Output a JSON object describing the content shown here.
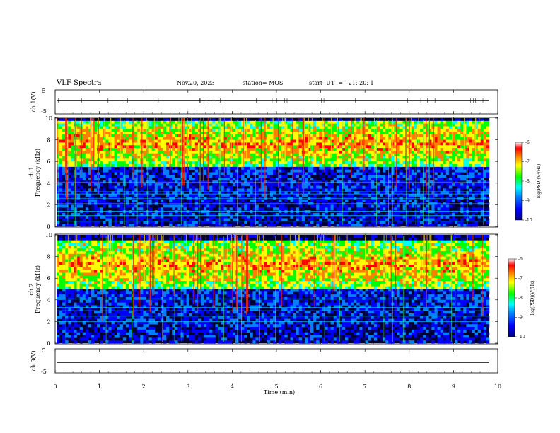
{
  "header": {
    "title": "VLF Spectra",
    "date": "Nov.20, 2023",
    "station": "station= MOS",
    "start": "start  UT  =   21: 20: 1"
  },
  "chart_data": [
    {
      "type": "line",
      "panel": "ch1-voltage",
      "ylabel": "ch.1(V)",
      "ylim": [
        -5,
        5
      ],
      "yticks": [
        "5",
        "-5"
      ],
      "series": [
        {
          "x": [
            0,
            9.85
          ],
          "values": [
            0,
            0
          ]
        }
      ]
    },
    {
      "type": "heatmap",
      "panel": "ch1-spectrogram",
      "ylabel": "ch.1\nFrequency (kHz)",
      "ylim": [
        0,
        10
      ],
      "yticks": [
        "0",
        "2",
        "4",
        "6",
        "8",
        "10"
      ],
      "xlim": [
        0,
        9.85
      ],
      "colorbar": {
        "label": "log(PSD)(V²/Hz)",
        "ticks": [
          "-6",
          "-7",
          "-8",
          "-9",
          "-10"
        ],
        "range": [
          -10,
          -6
        ]
      },
      "intense_band_khz": [
        5.5,
        9.8
      ],
      "emission_lines_khz": [
        0.5,
        1.0,
        1.4,
        2.1,
        2.6,
        3.0,
        3.2,
        4.1
      ]
    },
    {
      "type": "heatmap",
      "panel": "ch2-spectrogram",
      "ylabel": "ch.2\nFrequency (kHz)",
      "ylim": [
        0,
        10
      ],
      "yticks": [
        "0",
        "2",
        "4",
        "6",
        "8",
        "10"
      ],
      "xlim": [
        0,
        9.85
      ],
      "colorbar": {
        "label": "log(PSD)(V²/Hz)",
        "ticks": [
          "-6",
          "-7",
          "-8",
          "-9",
          "-10"
        ],
        "range": [
          -10,
          -6
        ]
      },
      "intense_band_khz": [
        5.0,
        9.5
      ],
      "emission_lines_khz": [
        1.4,
        2.0,
        2.5,
        3.0,
        3.3,
        4.1
      ]
    },
    {
      "type": "line",
      "panel": "ch3-voltage",
      "ylabel": "ch.3(V)",
      "ylim": [
        -5,
        5
      ],
      "yticks": [
        "5",
        "-5"
      ],
      "xlabel": "Time  (min)",
      "xticks": [
        "0",
        "1",
        "2",
        "3",
        "4",
        "5",
        "6",
        "7",
        "8",
        "9",
        "10"
      ],
      "xlim": [
        0,
        10
      ],
      "series": [
        {
          "x": [
            0,
            9.85
          ],
          "values": [
            0,
            0
          ]
        }
      ]
    }
  ],
  "colors": {
    "colormap": [
      "#00007f",
      "#0000ff",
      "#0080ff",
      "#00ffff",
      "#00ff00",
      "#ffff00",
      "#ff8000",
      "#ff0000"
    ],
    "background_noise": "#000030"
  }
}
